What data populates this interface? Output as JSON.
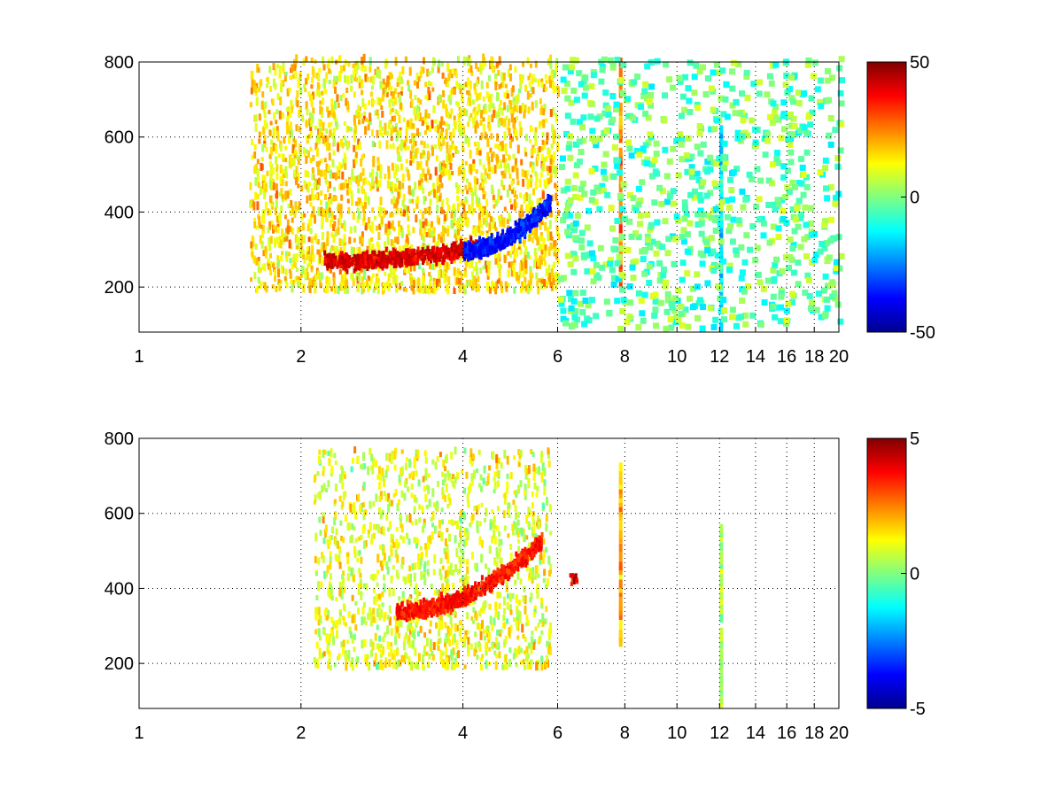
{
  "chart_data": [
    {
      "type": "heatmap",
      "title": "",
      "xlabel": "",
      "ylabel": "",
      "xlim": [
        1,
        20
      ],
      "ylim": [
        80,
        800
      ],
      "x_scale": "log",
      "grid": true,
      "colormap": "jet",
      "x_ticks": [
        1,
        2,
        4,
        6,
        8,
        10,
        12,
        14,
        16,
        18,
        20
      ],
      "x_tick_labels": [
        "1",
        "2",
        "4",
        "6",
        "8",
        "10",
        "12",
        "14",
        "16",
        "18",
        "20"
      ],
      "y_ticks": [
        200,
        400,
        600,
        800
      ],
      "y_tick_labels": [
        "200",
        "400",
        "600",
        "800"
      ],
      "colorbar": {
        "range": [
          -50,
          50
        ],
        "ticks": [
          50,
          0,
          -50
        ],
        "tick_labels": [
          "50",
          "0",
          "-50"
        ]
      },
      "features": [
        {
          "kind": "dense_cloud",
          "x": [
            1.6,
            6.0
          ],
          "y": [
            180,
            800
          ],
          "value": 15
        },
        {
          "kind": "ridge_positive",
          "x_start": 2.2,
          "x_end": 4.3,
          "y_start": 260,
          "y_end": 300,
          "value": 45
        },
        {
          "kind": "ridge_negative",
          "x_start": 4.0,
          "x_end": 5.8,
          "y_start": 290,
          "y_end": 420,
          "value": -40
        },
        {
          "kind": "stripe",
          "x": 7.8,
          "y": [
            200,
            800
          ],
          "value": 25
        },
        {
          "kind": "stripe",
          "x": 12.0,
          "y": [
            80,
            620
          ],
          "value": -15
        },
        {
          "kind": "scatter",
          "x": [
            6.0,
            20.0
          ],
          "y": [
            80,
            800
          ],
          "value_range": [
            -15,
            10
          ]
        }
      ]
    },
    {
      "type": "heatmap",
      "title": "",
      "xlabel": "",
      "ylabel": "",
      "xlim": [
        1,
        20
      ],
      "ylim": [
        80,
        800
      ],
      "x_scale": "log",
      "grid": true,
      "colormap": "jet",
      "x_ticks": [
        1,
        2,
        4,
        6,
        8,
        10,
        12,
        14,
        16,
        18,
        20
      ],
      "x_tick_labels": [
        "1",
        "2",
        "4",
        "6",
        "8",
        "10",
        "12",
        "14",
        "16",
        "18",
        "20"
      ],
      "y_ticks": [
        200,
        400,
        600,
        800
      ],
      "y_tick_labels": [
        "200",
        "400",
        "600",
        "800"
      ],
      "colorbar": {
        "range": [
          -5,
          5
        ],
        "ticks": [
          5,
          0,
          -5
        ],
        "tick_labels": [
          "5",
          "0",
          "-5"
        ]
      },
      "features": [
        {
          "kind": "dense_cloud",
          "x": [
            2.1,
            5.8
          ],
          "y": [
            180,
            760
          ],
          "value": 1
        },
        {
          "kind": "ridge_positive",
          "x_start": 3.0,
          "x_end": 5.6,
          "y_start": 330,
          "y_end": 520,
          "value": 4
        },
        {
          "kind": "cluster",
          "x": 6.4,
          "y": 420,
          "value": 4
        },
        {
          "kind": "stripe",
          "x": 7.8,
          "y": [
            220,
            750
          ],
          "value": 2
        },
        {
          "kind": "stripe",
          "x": 12.0,
          "y": [
            80,
            560
          ],
          "value": 0.5
        }
      ]
    }
  ]
}
